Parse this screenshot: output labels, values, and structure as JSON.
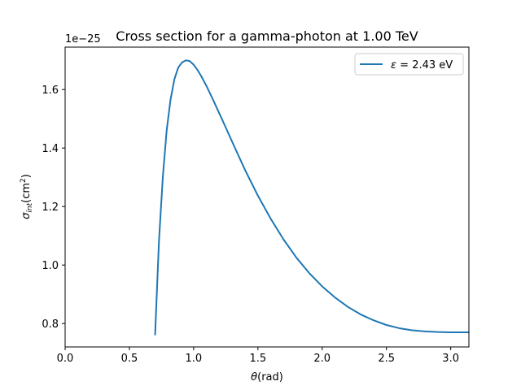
{
  "chart_data": {
    "type": "line",
    "title": "Cross section for a gamma-photon at 1.00 TeV",
    "xlabel": {
      "main": "θ",
      "rest": "(rad)"
    },
    "ylabel": {
      "sym": "σ",
      "sub": "int",
      "unit": "(cm",
      "sup": "2",
      "close": ")"
    },
    "y_offset_text": "1e−25",
    "xlim": [
      0.0,
      3.14159
    ],
    "ylim": [
      0.72,
      1.745
    ],
    "x_ticks": [
      0.0,
      0.5,
      1.0,
      1.5,
      2.0,
      2.5,
      3.0
    ],
    "x_tick_labels": [
      "0.0",
      "0.5",
      "1.0",
      "1.5",
      "2.0",
      "2.5",
      "3.0"
    ],
    "y_ticks": [
      0.8,
      1.0,
      1.2,
      1.4,
      1.6
    ],
    "y_tick_labels": [
      "0.8",
      "1.0",
      "1.2",
      "1.4",
      "1.6"
    ],
    "grid": false,
    "legend_position": "top-right",
    "series": [
      {
        "name": "ε = 2.43 eV",
        "legend_sym": "ε",
        "legend_rest": " = 2.43 eV",
        "color": "#1f77b4",
        "x": [
          0.7,
          0.73,
          0.76,
          0.79,
          0.82,
          0.85,
          0.88,
          0.91,
          0.94,
          0.97,
          1.0,
          1.03,
          1.06,
          1.1,
          1.15,
          1.2,
          1.25,
          1.3,
          1.4,
          1.5,
          1.6,
          1.7,
          1.8,
          1.9,
          2.0,
          2.1,
          2.2,
          2.3,
          2.4,
          2.5,
          2.6,
          2.7,
          2.8,
          2.9,
          3.0,
          3.1,
          3.14
        ],
        "y": [
          0.76,
          1.08,
          1.3,
          1.46,
          1.565,
          1.635,
          1.675,
          1.693,
          1.7,
          1.697,
          1.685,
          1.667,
          1.645,
          1.612,
          1.566,
          1.518,
          1.47,
          1.421,
          1.325,
          1.237,
          1.158,
          1.087,
          1.025,
          0.972,
          0.927,
          0.889,
          0.857,
          0.831,
          0.811,
          0.795,
          0.784,
          0.777,
          0.773,
          0.771,
          0.77,
          0.77,
          0.77
        ]
      }
    ]
  }
}
